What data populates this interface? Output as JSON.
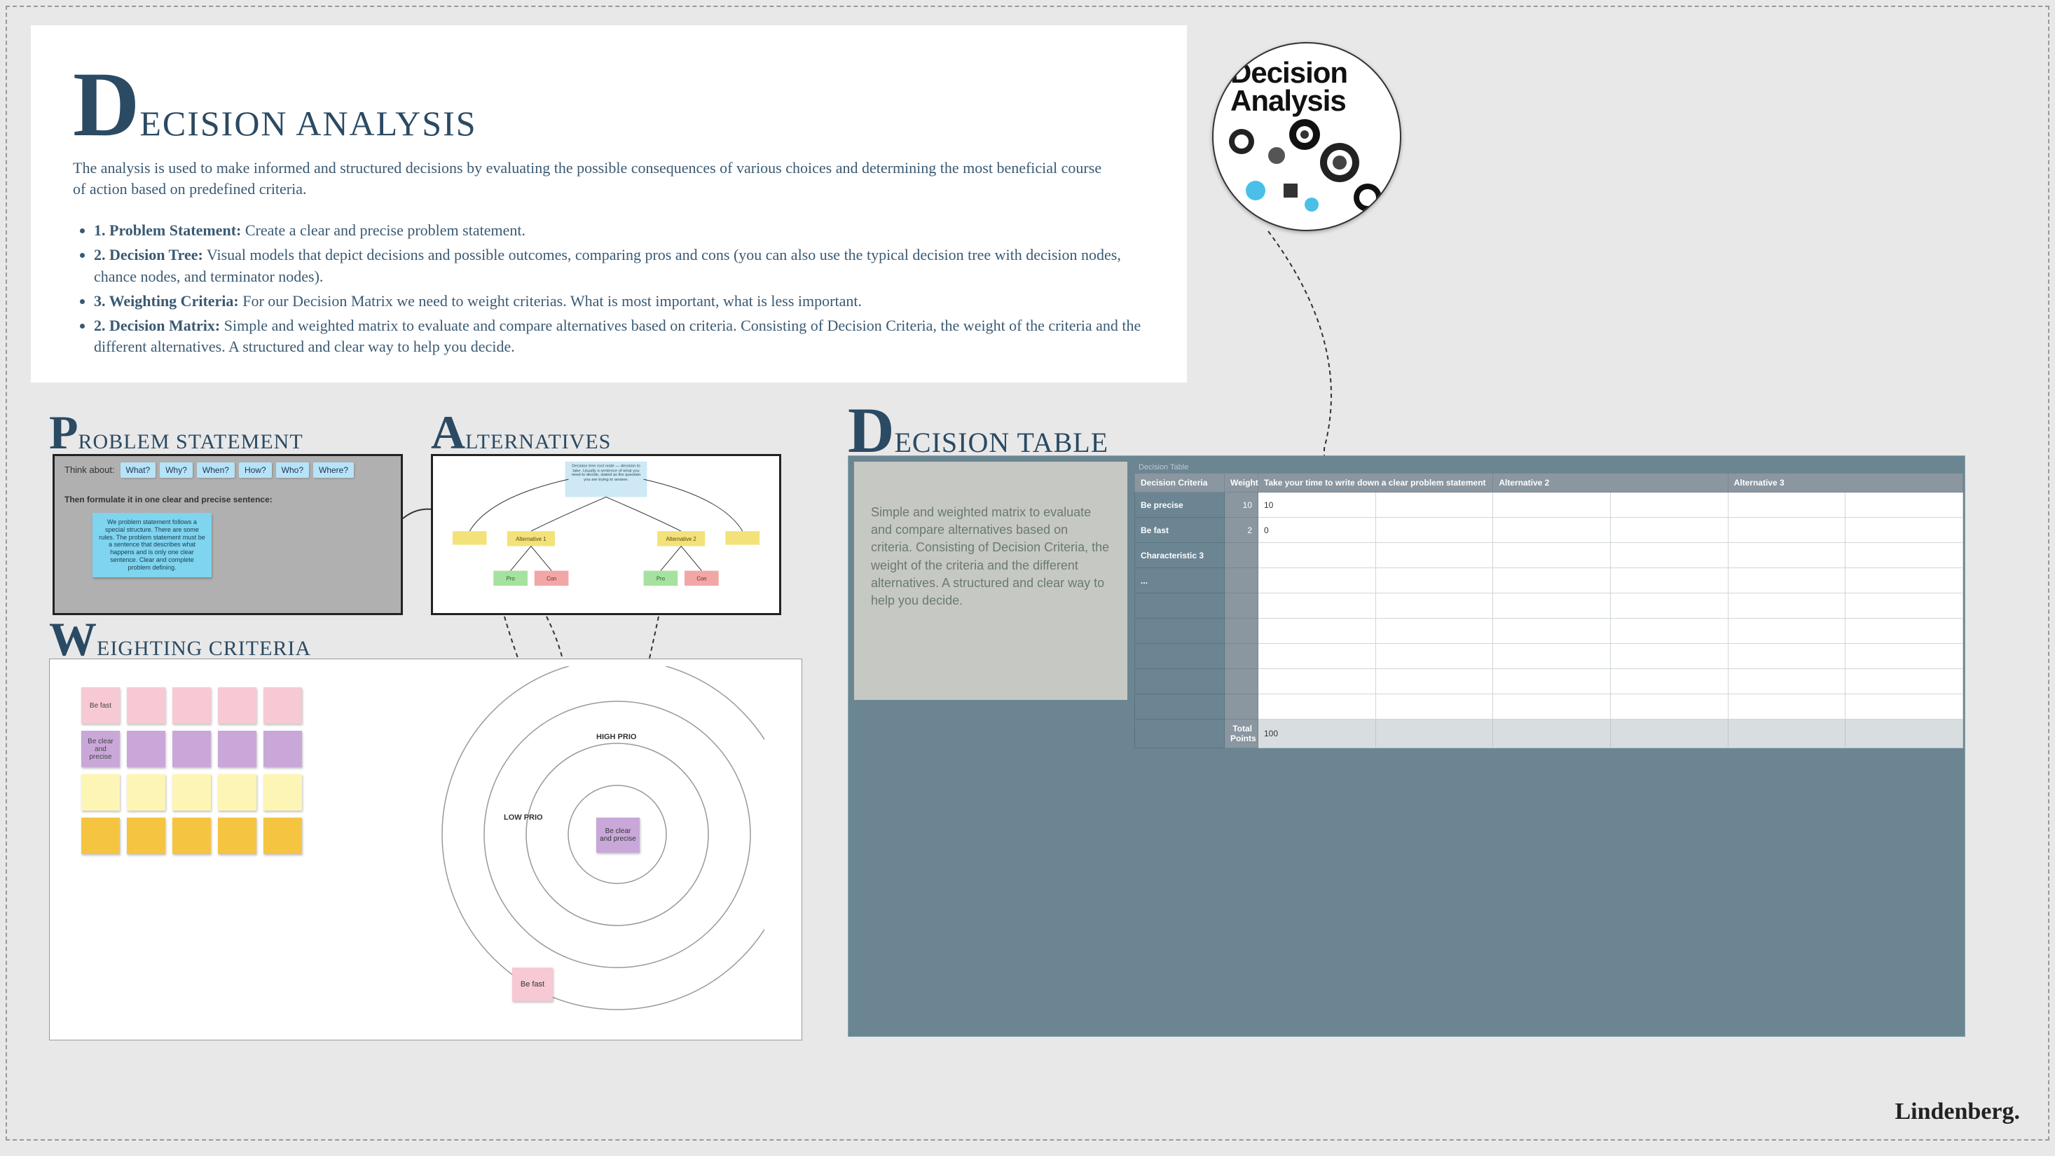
{
  "colors": {
    "page_bg": "#e8e8e8",
    "heading": "#2b4a63",
    "body_text": "#3a5a73",
    "frame_border": "#222222",
    "problem_bg": "#b0b0b0",
    "think_btn": "#b6e3f7",
    "blue_note": "#7fd4f0",
    "alt_root": "#cfe8f5",
    "alt_mid": "#f3e27a",
    "alt_pro": "#a6e29f",
    "alt_con": "#f3a6a6",
    "sticky_pink": "#f7c9d4",
    "sticky_purple": "#c9a8d9",
    "sticky_lyellow": "#fdf5b5",
    "sticky_dyellow": "#f5c542",
    "decision_bg": "#6b8593",
    "info_box_bg": "#c6c9c3",
    "table_header": "#8a96a0"
  },
  "header": {
    "title_cap": "D",
    "title_rest": "ECISION ANALYSIS",
    "intro": "The analysis is used to make informed and structured decisions by evaluating the possible consequences of various choices and determining the most beneficial course of action based on predefined criteria.",
    "bullets": [
      {
        "b": "1. Problem Statement:",
        "t": " Create a clear and precise problem statement."
      },
      {
        "b": "2. Decision Tree:",
        "t": " Visual models that depict decisions and possible outcomes, comparing pros and cons (you can also use the typical decision tree with decision nodes, chance nodes, and terminator nodes)."
      },
      {
        "b": "3. Weighting Criteria:",
        "t": " For our Decision Matrix we need to weight criterias. What is most important, what is less important."
      },
      {
        "b": "2. Decision Matrix:",
        "t": " Simple and weighted matrix to evaluate and compare alternatives based on criteria. Consisting of Decision Criteria, the weight of the criteria and the different alternatives. A structured and clear way to help you decide."
      }
    ]
  },
  "circle": {
    "line1": "Decision",
    "line2": "Analysis"
  },
  "problem": {
    "title_cap": "P",
    "title_rest": "ROBLEM STATEMENT",
    "think_label": "Think about:",
    "think": [
      "What?",
      "Why?",
      "When?",
      "How?",
      "Who?",
      "Where?"
    ],
    "formulate": "Then formulate it in one clear and precise sentence:",
    "blue_note": "We problem statement follows a special structure. There are some rules. The problem statement must be a sentence that describes what happens and is only one clear sentence. Clear and complete problem defining."
  },
  "alternatives": {
    "title_cap": "A",
    "title_rest": "LTERNATIVES",
    "root_text": "Decision tree root node — decision to take. Usually a sentence of what you need to decide, stated as the question you are trying to answer.",
    "mids": [
      "Alternative 1",
      "Alternative 2"
    ],
    "side_mids": [
      "",
      ""
    ],
    "leaves": [
      {
        "label": "Pro",
        "color": "#a6e29f"
      },
      {
        "label": "Con",
        "color": "#f3a6a6"
      },
      {
        "label": "Pro",
        "color": "#a6e29f"
      },
      {
        "label": "Con",
        "color": "#f3a6a6"
      }
    ]
  },
  "weighting": {
    "title_cap": "W",
    "title_rest": "EIGHTING CRITERIA",
    "row_labels": [
      "Be fast",
      "Be clear and precise",
      "",
      ""
    ],
    "rows": [
      {
        "color": "pink",
        "count": 5
      },
      {
        "color": "purple",
        "count": 5
      },
      {
        "color": "lyellow",
        "count": 5
      },
      {
        "color": "dyellow",
        "count": 5
      }
    ],
    "rings": {
      "high": "HIGH PRIO",
      "low": "LOW PRIO",
      "center": "Be clear and precise",
      "outer": "Be fast"
    }
  },
  "decision": {
    "title_cap": "D",
    "title_rest": "ECISION TABLE",
    "caption": "Decision Table",
    "info": "Simple and weighted matrix to evaluate and compare alternatives based on criteria. Consisting of Decision Criteria, the weight of the criteria and the different alternatives. A structured and clear way to help you decide.",
    "headers": {
      "criteria": "Decision Criteria",
      "weight": "Weight",
      "alts": [
        "Take your time to write down a clear problem statement",
        "Alternative 2",
        "Alternative 3"
      ]
    },
    "alt_sub_cols": 2,
    "rows": [
      {
        "label": "Be precise",
        "weight": "10",
        "vals": [
          "10",
          "",
          "",
          "",
          "",
          ""
        ]
      },
      {
        "label": "Be fast",
        "weight": "2",
        "vals": [
          "0",
          "",
          "",
          "",
          "",
          ""
        ]
      },
      {
        "label": "Characteristic 3",
        "weight": "",
        "vals": [
          "",
          "",
          "",
          "",
          "",
          ""
        ]
      },
      {
        "label": "...",
        "weight": "",
        "vals": [
          "",
          "",
          "",
          "",
          "",
          ""
        ]
      },
      {
        "label": "",
        "weight": "",
        "vals": [
          "",
          "",
          "",
          "",
          "",
          ""
        ]
      },
      {
        "label": "",
        "weight": "",
        "vals": [
          "",
          "",
          "",
          "",
          "",
          ""
        ]
      },
      {
        "label": "",
        "weight": "",
        "vals": [
          "",
          "",
          "",
          "",
          "",
          ""
        ]
      },
      {
        "label": "",
        "weight": "",
        "vals": [
          "",
          "",
          "",
          "",
          "",
          ""
        ]
      },
      {
        "label": "",
        "weight": "",
        "vals": [
          "",
          "",
          "",
          "",
          "",
          ""
        ]
      }
    ],
    "total_label": "Total Points",
    "total_vals": [
      "100",
      "",
      "",
      "",
      "",
      ""
    ]
  },
  "footer": "Lindenberg."
}
